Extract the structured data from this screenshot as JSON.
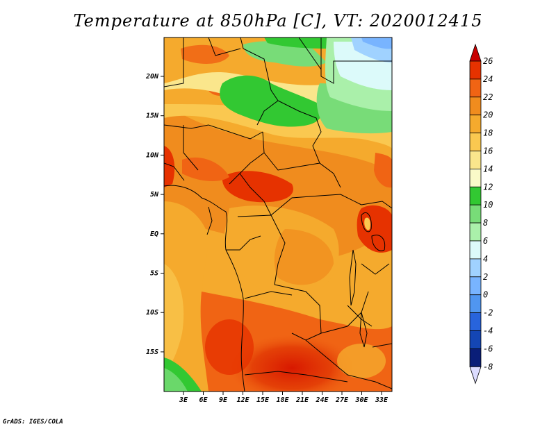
{
  "title": "Temperature at 850hPa [C], VT: 2020012415",
  "credit": "GrADS: IGES/COLA",
  "map": {
    "lat_labels": [
      "20N",
      "15N",
      "10N",
      "5N",
      "EQ",
      "5S",
      "10S",
      "15S"
    ],
    "lon_labels": [
      "3E",
      "6E",
      "9E",
      "12E",
      "15E",
      "18E",
      "21E",
      "24E",
      "27E",
      "30E",
      "33E"
    ]
  },
  "colorbar": {
    "labels": [
      "26",
      "24",
      "22",
      "20",
      "18",
      "16",
      "14",
      "12",
      "10",
      "8",
      "6",
      "4",
      "2",
      "0",
      "-2",
      "-4",
      "-6",
      "-8"
    ],
    "colors": [
      "#c80000",
      "#e63200",
      "#f06414",
      "#f08c1e",
      "#f5aa2d",
      "#fac850",
      "#fae68c",
      "#fafac8",
      "#32c832",
      "#78dc78",
      "#aaf0aa",
      "#dcfafa",
      "#a0d2ff",
      "#78b4ff",
      "#5096f0",
      "#2864dc",
      "#1446b4",
      "#0a1e78",
      "#dcdcff"
    ]
  }
}
